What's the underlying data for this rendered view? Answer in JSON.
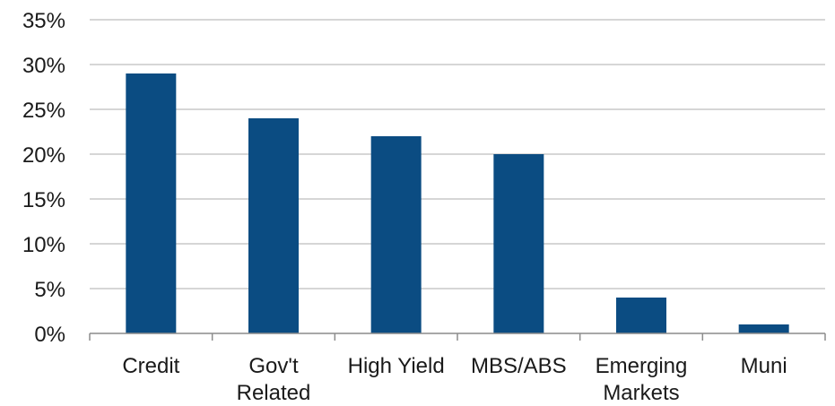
{
  "chart_data": {
    "type": "bar",
    "categories": [
      [
        "Credit"
      ],
      [
        "Gov't",
        "Related"
      ],
      [
        "High Yield"
      ],
      [
        "MBS/ABS"
      ],
      [
        "Emerging",
        "Markets"
      ],
      [
        "Muni"
      ]
    ],
    "values": [
      29,
      24,
      22,
      20,
      4,
      1
    ],
    "ylim": [
      0,
      35
    ],
    "yticks": [
      0,
      5,
      10,
      15,
      20,
      25,
      30,
      35
    ],
    "ytick_labels": [
      "0%",
      "5%",
      "10%",
      "15%",
      "20%",
      "25%",
      "30%",
      "35%"
    ],
    "title": "",
    "xlabel": "",
    "ylabel": "",
    "grid": true,
    "legend": "none",
    "colors": {
      "bar": "#0b4c82",
      "grid": "#c8c8c8",
      "axis": "#8c8c8c"
    }
  }
}
